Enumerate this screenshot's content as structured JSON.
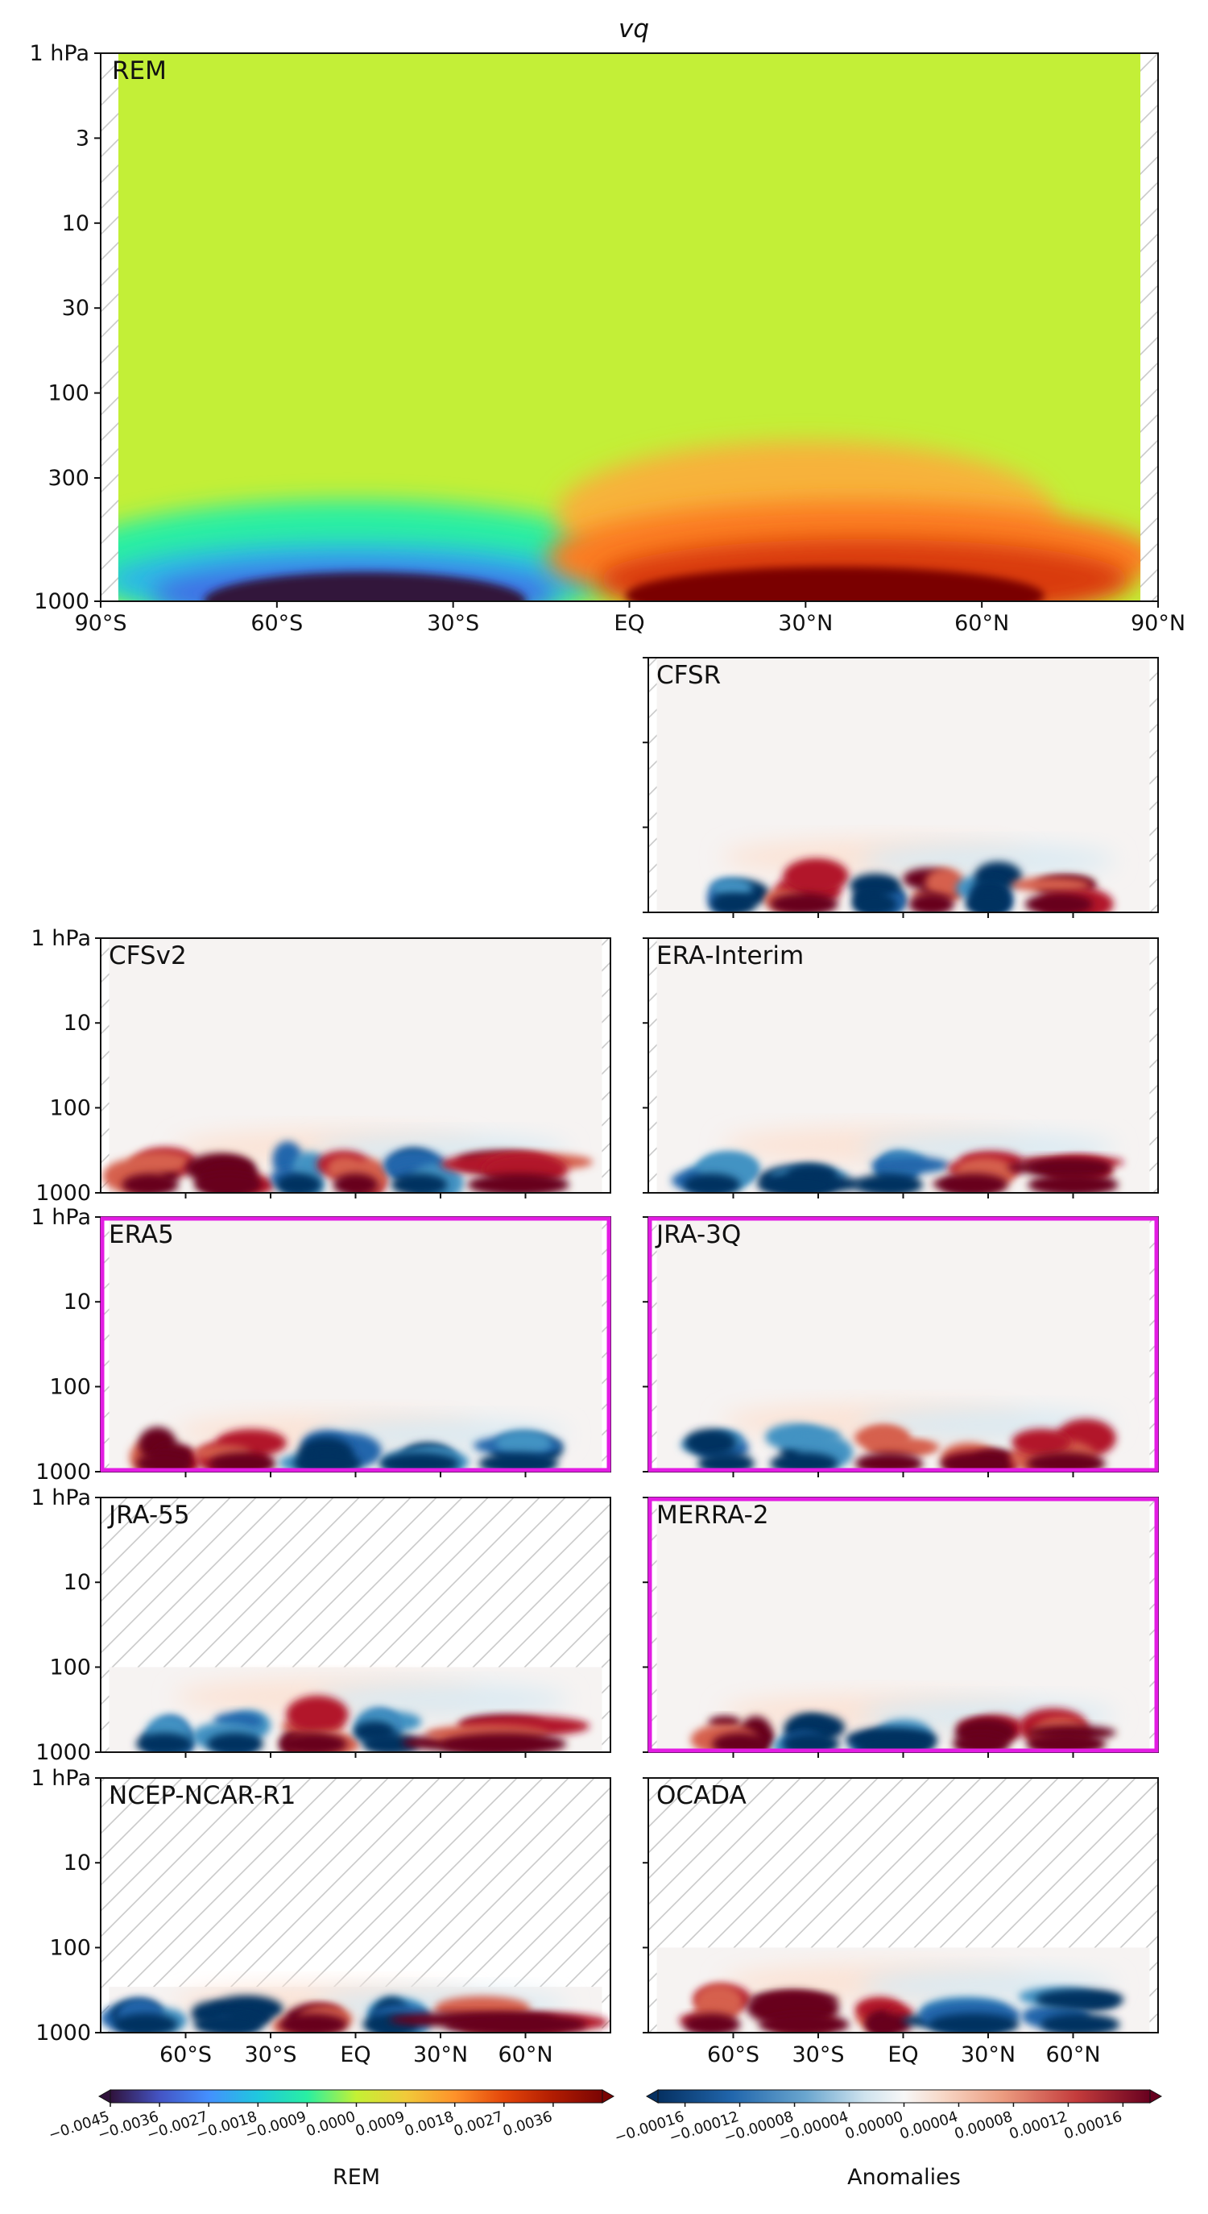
{
  "chart_data": {
    "type": "heatmap",
    "title": "vq",
    "variable": "vq",
    "x_ticks": [
      "90°S",
      "60°S",
      "30°S",
      "EQ",
      "30°N",
      "60°N",
      "90°N"
    ],
    "x_ticks_small": [
      "60°S",
      "30°S",
      "EQ",
      "30°N",
      "60°N"
    ],
    "top_panel": {
      "label": "REM",
      "label_color": "#e31ce3",
      "y_ticks": [
        "1 hPa",
        "3",
        "10",
        "30",
        "100",
        "300",
        "1000"
      ],
      "xlim": [
        -90,
        90
      ],
      "ylim_hPa": [
        1000,
        1
      ],
      "features": [
        {
          "lat_range": [
            -65,
            -25
          ],
          "pressure_range": [
            1000,
            500
          ],
          "value": -0.0045,
          "desc": "southward moisture flux maximum"
        },
        {
          "lat_range": [
            10,
            70
          ],
          "pressure_range": [
            1000,
            300
          ],
          "value": 0.0036,
          "desc": "northward moisture flux maximum"
        }
      ]
    },
    "panels": [
      {
        "name": "CFSR",
        "highlight": false,
        "masked_above_hPa": null
      },
      {
        "name": "CFSv2",
        "highlight": false,
        "masked_above_hPa": null
      },
      {
        "name": "ERA-Interim",
        "highlight": false,
        "masked_above_hPa": null
      },
      {
        "name": "ERA5",
        "highlight": true,
        "masked_above_hPa": null
      },
      {
        "name": "JRA-3Q",
        "highlight": true,
        "masked_above_hPa": null
      },
      {
        "name": "JRA-55",
        "highlight": false,
        "masked_above_hPa": 100
      },
      {
        "name": "MERRA-2",
        "highlight": true,
        "masked_above_hPa": null
      },
      {
        "name": "NCEP-NCAR-R1",
        "highlight": false,
        "masked_above_hPa": 300
      },
      {
        "name": "OCADA",
        "highlight": false,
        "masked_above_hPa": 100
      }
    ],
    "small_y_ticks": [
      "1 hPa",
      "10",
      "100",
      "1000"
    ],
    "colorbar_rem": {
      "label": "REM",
      "ticks": [
        "−0.0045",
        "−0.0036",
        "−0.0027",
        "−0.0018",
        "−0.0009",
        "0.0000",
        "0.0009",
        "0.0018",
        "0.0027",
        "0.0036"
      ],
      "range": [
        -0.0045,
        0.0045
      ]
    },
    "colorbar_anom": {
      "label": "Anomalies",
      "ticks": [
        "−0.00016",
        "−0.00012",
        "−0.00008",
        "−0.00004",
        "0.00000",
        "0.00004",
        "0.00008",
        "0.00012",
        "0.00016"
      ],
      "range": [
        -0.00018,
        0.00018
      ]
    }
  }
}
